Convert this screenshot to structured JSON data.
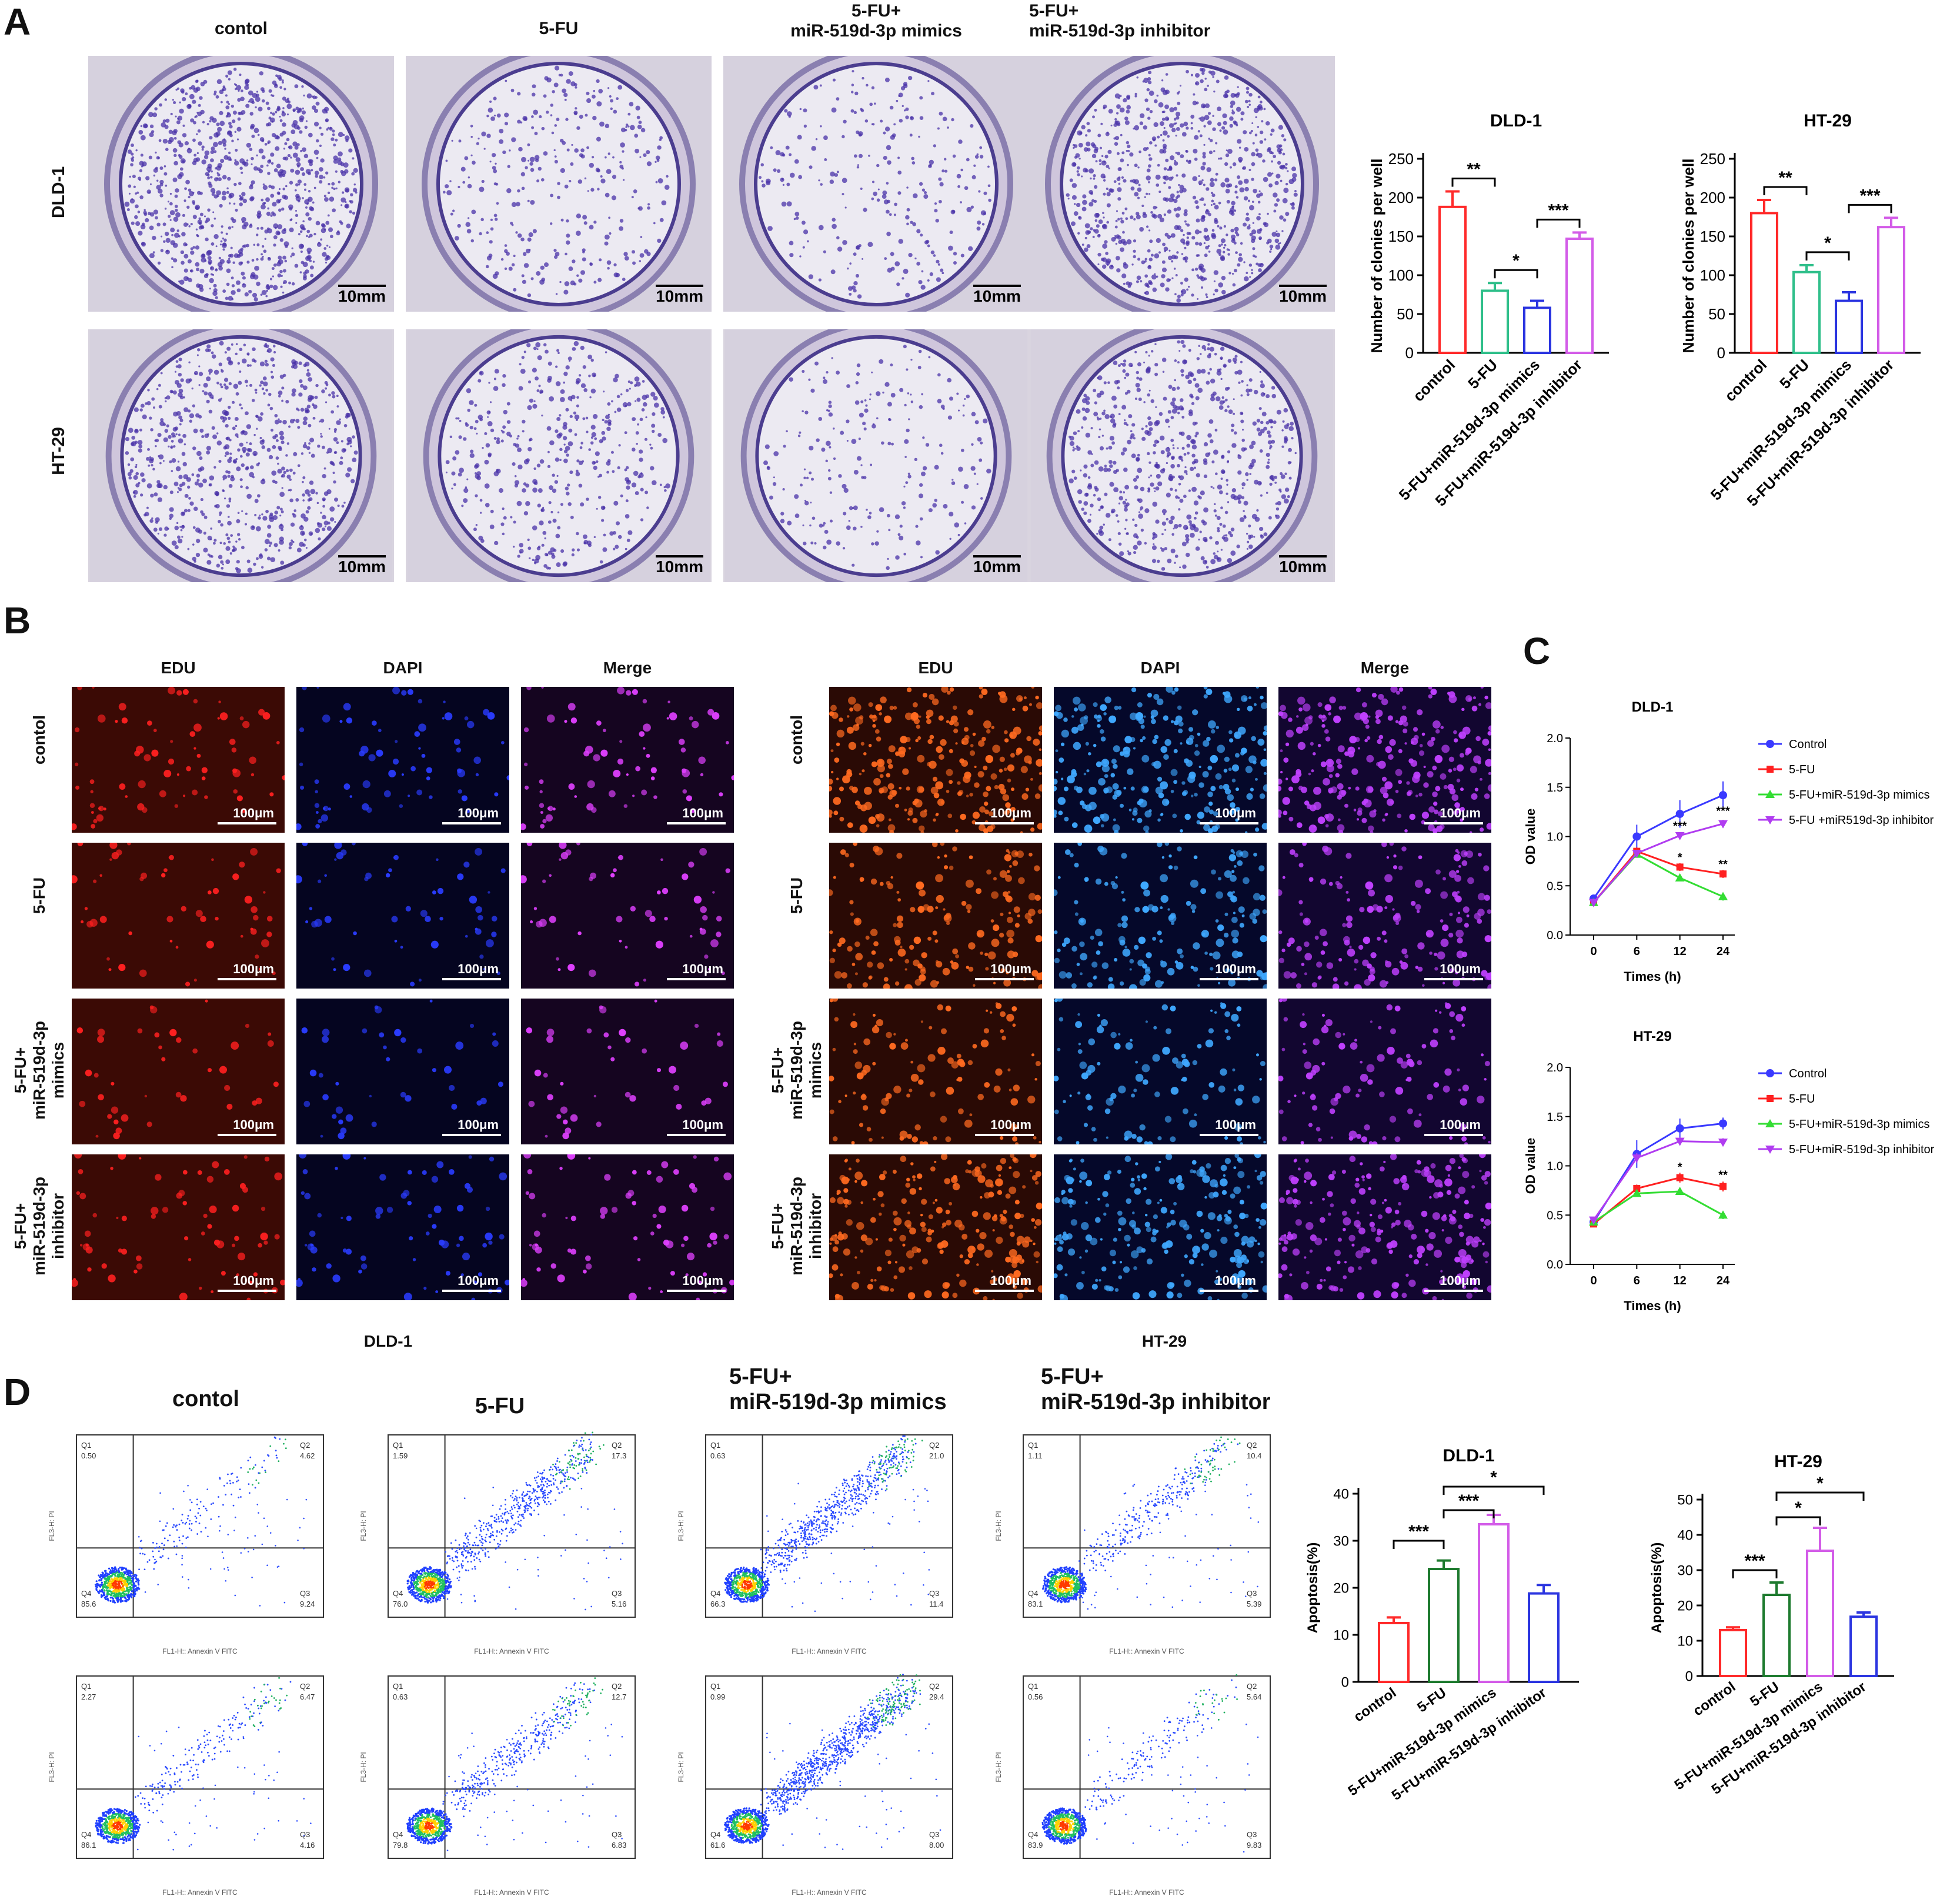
{
  "panels": {
    "A": "A",
    "B": "B",
    "C": "C",
    "D": "D"
  },
  "panelA": {
    "columns": [
      "contol",
      "5-FU",
      "5-FU+\nmiR-519d-3p mimics",
      "5-FU+\nmiR-519d-3p inhibitor"
    ],
    "rows": [
      "DLD-1",
      "HT-29"
    ],
    "scale_label": "10mm"
  },
  "panelB": {
    "channels": [
      "EDU",
      "DAPI",
      "Merge"
    ],
    "rows": [
      "contol",
      "5-FU",
      "5-FU+\nmiR-519d-3p\nmimics",
      "5-FU+\nmiR-519d-3p\ninhibitor"
    ],
    "groups": [
      "DLD-1",
      "HT-29"
    ],
    "scale_label": "100μm"
  },
  "panelD": {
    "columns": [
      "contol",
      "5-FU",
      "5-FU+\nmiR-519d-3p mimics",
      "5-FU+\nmiR-519d-3p inhibitor"
    ],
    "quadrant_labels": [
      "Q1",
      "Q2",
      "Q3",
      "Q4"
    ],
    "xaxis_label": "FL1-H:: Annexin V FITC",
    "yaxis_label": "FL3-H: PI",
    "row1_values": [
      {
        "q1": "0.50",
        "q2": "4.62",
        "q3": "9.24",
        "q4": "85.6"
      },
      {
        "q1": "1.59",
        "q2": "17.3",
        "q3": "5.16",
        "q4": "76.0"
      },
      {
        "q1": "0.63",
        "q2": "21.0",
        "q3": "11.4",
        "q4": "66.3"
      },
      {
        "q1": "1.11",
        "q2": "10.4",
        "q3": "5.39",
        "q4": "83.1"
      }
    ],
    "row2_values": [
      {
        "q1": "2.27",
        "q2": "6.47",
        "q3": "4.16",
        "q4": "86.1"
      },
      {
        "q1": "0.63",
        "q2": "12.7",
        "q3": "6.83",
        "q4": "79.8"
      },
      {
        "q1": "0.99",
        "q2": "29.4",
        "q3": "8.00",
        "q4": "61.6"
      },
      {
        "q1": "0.56",
        "q2": "5.64",
        "q3": "9.83",
        "q4": "83.9"
      }
    ]
  },
  "colors": {
    "red": "#ff2a2a",
    "green": "#2fbf8a",
    "blue": "#2b35e0",
    "magenta": "#d35ce8",
    "darkgreen": "#1d7a2e"
  },
  "chart_data": [
    {
      "id": "colony-dld1",
      "type": "bar",
      "title": "DLD-1",
      "ylabel": "Number of clonies per well",
      "categories": [
        "control",
        "5-FU",
        "5-FU+miR-519d-3p mimics",
        "5-FU+miR-519d-3p inhibitor"
      ],
      "values": [
        188,
        80,
        58,
        147
      ],
      "errors": [
        20,
        10,
        9,
        8
      ],
      "ylim": [
        0,
        250
      ],
      "yticks": [
        0,
        50,
        100,
        150,
        200,
        250
      ],
      "bar_colors": [
        "#ff2a2a",
        "#2fbf8a",
        "#2b35e0",
        "#d35ce8"
      ],
      "significance": [
        {
          "from": 0,
          "to": 1,
          "label": "**"
        },
        {
          "from": 1,
          "to": 2,
          "label": "*"
        },
        {
          "from": 2,
          "to": 3,
          "label": "***"
        }
      ]
    },
    {
      "id": "colony-ht29",
      "type": "bar",
      "title": "HT-29",
      "ylabel": "Number of clonies per well",
      "categories": [
        "control",
        "5-FU",
        "5-FU+miR-519d-3p mimics",
        "5-FU+miR-519d-3p inhibitor"
      ],
      "values": [
        180,
        104,
        67,
        162
      ],
      "errors": [
        17,
        9,
        11,
        12
      ],
      "ylim": [
        0,
        250
      ],
      "yticks": [
        0,
        50,
        100,
        150,
        200,
        250
      ],
      "bar_colors": [
        "#ff2a2a",
        "#2fbf8a",
        "#2b35e0",
        "#d35ce8"
      ],
      "significance": [
        {
          "from": 0,
          "to": 1,
          "label": "**"
        },
        {
          "from": 1,
          "to": 2,
          "label": "*"
        },
        {
          "from": 2,
          "to": 3,
          "label": "***"
        }
      ]
    },
    {
      "id": "od-dld1",
      "type": "line",
      "title": "DLD-1",
      "xlabel": "Times (h)",
      "ylabel": "OD value",
      "x": [
        "0",
        "6",
        "12",
        "24"
      ],
      "ylim": [
        0,
        2.0
      ],
      "yticks": [
        0.0,
        0.5,
        1.0,
        1.5,
        2.0
      ],
      "series": [
        {
          "name": "Control",
          "color": "#3a3aff",
          "marker": "circle",
          "values": [
            0.37,
            1.0,
            1.23,
            1.42
          ],
          "errors": [
            0.02,
            0.12,
            0.14,
            0.14
          ]
        },
        {
          "name": "5-FU",
          "color": "#ff2020",
          "marker": "square",
          "values": [
            0.33,
            0.85,
            0.69,
            0.62
          ],
          "errors": [
            0.02,
            0.04,
            0.04,
            0.04
          ]
        },
        {
          "name": "5-FU+miR-519d-3p mimics",
          "color": "#33dd33",
          "marker": "triangle",
          "values": [
            0.33,
            0.82,
            0.58,
            0.39
          ],
          "errors": [
            0.02,
            0.03,
            0.03,
            0.04
          ]
        },
        {
          "name": "5-FU +miR519d-3p inhibitor",
          "color": "#b03cf0",
          "marker": "triangle-down",
          "values": [
            0.33,
            0.83,
            1.01,
            1.13
          ],
          "errors": [
            0.02,
            0.03,
            0.03,
            0.04
          ]
        }
      ],
      "annotations": [
        {
          "x": "12",
          "y": 1.07,
          "label": "***"
        },
        {
          "x": "12",
          "y": 0.75,
          "label": "*"
        },
        {
          "x": "24",
          "y": 1.22,
          "label": "***"
        },
        {
          "x": "24",
          "y": 0.68,
          "label": "**"
        }
      ]
    },
    {
      "id": "od-ht29",
      "type": "line",
      "title": "HT-29",
      "xlabel": "Times (h)",
      "ylabel": "OD value",
      "x": [
        "0",
        "6",
        "12",
        "24"
      ],
      "ylim": [
        0,
        2.0
      ],
      "yticks": [
        0.0,
        0.5,
        1.0,
        1.5,
        2.0
      ],
      "series": [
        {
          "name": "Control",
          "color": "#3a3aff",
          "marker": "circle",
          "values": [
            0.43,
            1.12,
            1.38,
            1.43
          ],
          "errors": [
            0.03,
            0.14,
            0.1,
            0.06
          ]
        },
        {
          "name": "5-FU",
          "color": "#ff2020",
          "marker": "square",
          "values": [
            0.41,
            0.77,
            0.88,
            0.79
          ],
          "errors": [
            0.03,
            0.04,
            0.05,
            0.05
          ]
        },
        {
          "name": "5-FU+miR-519d-3p mimics",
          "color": "#33dd33",
          "marker": "triangle",
          "values": [
            0.43,
            0.72,
            0.74,
            0.5
          ],
          "errors": [
            0.03,
            0.03,
            0.03,
            0.04
          ]
        },
        {
          "name": "5-FU+miR-519d-3p inhibitor",
          "color": "#b03cf0",
          "marker": "triangle-down",
          "values": [
            0.45,
            1.08,
            1.25,
            1.24
          ],
          "errors": [
            0.03,
            0.05,
            0.04,
            0.04
          ]
        }
      ],
      "annotations": [
        {
          "x": "12",
          "y": 0.95,
          "label": "*"
        },
        {
          "x": "24",
          "y": 0.87,
          "label": "**"
        }
      ]
    },
    {
      "id": "apoptosis-dld1",
      "type": "bar",
      "title": "DLD-1",
      "ylabel": "Apoptosis(%)",
      "categories": [
        "control",
        "5-FU",
        "5-FU+miR-519d-3p mimics",
        "5-FU+miR-519d-3p inhibitor"
      ],
      "values": [
        12.5,
        24,
        33.5,
        18.8
      ],
      "errors": [
        1.2,
        1.8,
        2.0,
        1.8
      ],
      "ylim": [
        0,
        40
      ],
      "yticks": [
        0,
        10,
        20,
        30,
        40
      ],
      "bar_colors": [
        "#ff2a2a",
        "#1d7a2e",
        "#d35ce8",
        "#2b35e0"
      ],
      "significance": [
        {
          "from": 0,
          "to": 1,
          "label": "***"
        },
        {
          "from": 1,
          "to": 2,
          "label": "***"
        },
        {
          "from": 1,
          "to": 3,
          "label": "*"
        }
      ]
    },
    {
      "id": "apoptosis-ht29",
      "type": "bar",
      "title": "HT-29",
      "ylabel": "Apoptosis(%)",
      "categories": [
        "control",
        "5-FU",
        "5-FU+miR-519d-3p mimics",
        "5-FU+miR-519d-3p inhibitor"
      ],
      "values": [
        13,
        23,
        35.5,
        16.8
      ],
      "errors": [
        0.8,
        3.5,
        6.5,
        1.2
      ],
      "ylim": [
        0,
        50
      ],
      "yticks": [
        0,
        10,
        20,
        30,
        40,
        50
      ],
      "bar_colors": [
        "#ff2a2a",
        "#1d7a2e",
        "#d35ce8",
        "#2b35e0"
      ],
      "significance": [
        {
          "from": 0,
          "to": 1,
          "label": "***"
        },
        {
          "from": 1,
          "to": 2,
          "label": "*"
        },
        {
          "from": 1,
          "to": 3,
          "label": "*"
        }
      ]
    }
  ]
}
